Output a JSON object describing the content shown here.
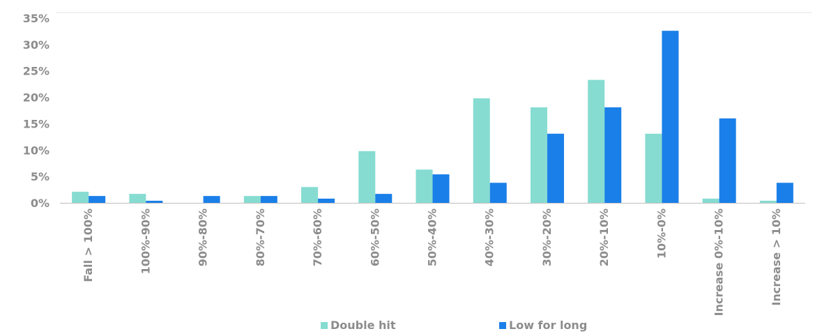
{
  "chart_data": {
    "type": "bar",
    "categories": [
      "Fall > 100%",
      "100%-90%",
      "90%-80%",
      "80%-70%",
      "70%-60%",
      "60%-50%",
      "50%-40%",
      "40%-30%",
      "30%-20%",
      "20%-10%",
      "10%-0%",
      "Increase 0%-10%",
      "Increase > 10%"
    ],
    "series": [
      {
        "name": "Double hit",
        "color": "#86dcd1",
        "values": [
          2.1,
          1.7,
          0,
          1.3,
          3.0,
          9.8,
          6.3,
          19.8,
          18.1,
          23.3,
          13.1,
          0.8,
          0.4
        ]
      },
      {
        "name": "Low for long",
        "color": "#1a7fe8",
        "values": [
          1.3,
          0.4,
          1.3,
          1.3,
          0.8,
          1.7,
          5.4,
          3.8,
          13.1,
          18.1,
          32.6,
          16.0,
          3.8
        ]
      }
    ],
    "yticks": [
      "0%",
      "5%",
      "10%",
      "15%",
      "20%",
      "25%",
      "30%",
      "35%"
    ],
    "ylim": [
      0,
      35
    ],
    "legend_position": "bottom",
    "grid": false
  }
}
